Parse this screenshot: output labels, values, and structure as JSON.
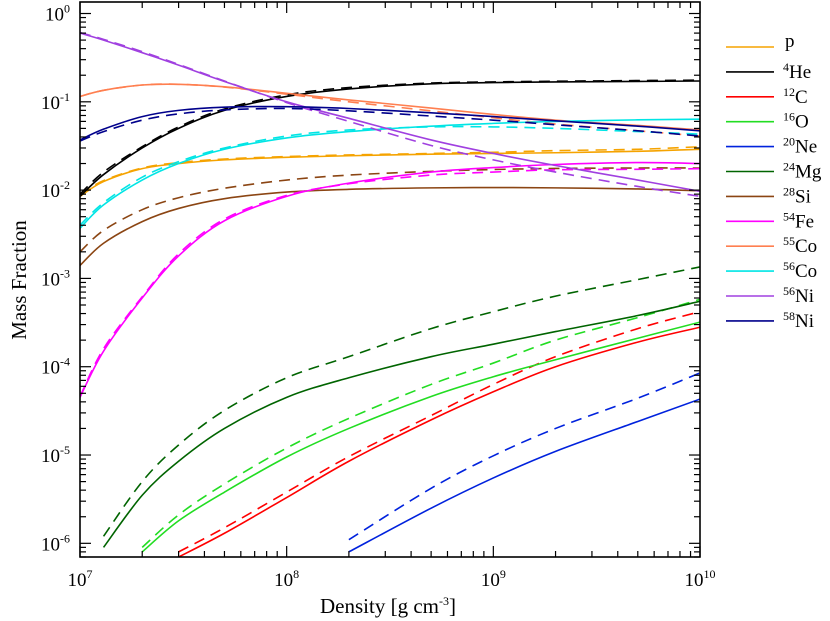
{
  "chart_data": {
    "type": "line",
    "x_scale": "log",
    "y_scale": "log",
    "xlabel": "Density [g cm⁻³]",
    "xlabel_parts": {
      "main": "Density [g cm",
      "sup": "-3",
      "end": "]"
    },
    "ylabel": "Mass Fraction",
    "xlim": [
      10000000,
      10000000000
    ],
    "ylim": [
      7e-07,
      1.35
    ],
    "grid": false,
    "legend_placement": "right, outside plot",
    "line_styles": {
      "solid": "model A (unlabeled)",
      "dashed": "model B (unlabeled)"
    },
    "x_ticks": [
      {
        "value": 10000000,
        "base": "10",
        "exp": "7"
      },
      {
        "value": 100000000,
        "base": "10",
        "exp": "8"
      },
      {
        "value": 1000000000,
        "base": "10",
        "exp": "9"
      },
      {
        "value": 10000000000,
        "base": "10",
        "exp": "10"
      }
    ],
    "y_ticks": [
      {
        "value": 1e-06,
        "base": "10",
        "exp": "-6"
      },
      {
        "value": 1e-05,
        "base": "10",
        "exp": "-5"
      },
      {
        "value": 0.0001,
        "base": "10",
        "exp": "-4"
      },
      {
        "value": 0.001,
        "base": "10",
        "exp": "-3"
      },
      {
        "value": 0.01,
        "base": "10",
        "exp": "-2"
      },
      {
        "value": 0.1,
        "base": "10",
        "exp": "-1"
      },
      {
        "value": 1,
        "base": "10",
        "exp": "0"
      }
    ],
    "x": [
      10000000,
      13000000,
      20000000,
      30000000,
      50000000,
      100000000,
      200000000,
      500000000,
      1000000000,
      2000000000,
      5000000000,
      10000000000
    ],
    "series": [
      {
        "name": "p",
        "sup": "",
        "sym": "p",
        "color": "#f5a300",
        "solid": [
          0.0085,
          0.0125,
          0.0175,
          0.02,
          0.022,
          0.0235,
          0.0245,
          0.0255,
          0.026,
          0.0265,
          0.0275,
          0.029
        ],
        "dashed": [
          0.009,
          0.0128,
          0.0178,
          0.0205,
          0.0225,
          0.024,
          0.025,
          0.026,
          0.0268,
          0.028,
          0.029,
          0.031
        ]
      },
      {
        "name": "4He",
        "sup": "4",
        "sym": "He",
        "color": "#000000",
        "solid": [
          0.0085,
          0.015,
          0.03,
          0.05,
          0.08,
          0.115,
          0.14,
          0.16,
          0.165,
          0.168,
          0.17,
          0.172
        ],
        "dashed": [
          0.009,
          0.016,
          0.031,
          0.052,
          0.083,
          0.12,
          0.145,
          0.163,
          0.168,
          0.171,
          0.174,
          0.176
        ]
      },
      {
        "name": "12C",
        "sup": "12",
        "sym": "C",
        "color": "#ff0000",
        "solid": [
          null,
          null,
          null,
          7e-07,
          1.3e-06,
          3.3e-06,
          8.5e-06,
          2.5e-05,
          5.2e-05,
          0.0001,
          0.00019,
          0.00028
        ],
        "dashed": [
          null,
          null,
          null,
          8e-07,
          1.5e-06,
          3.8e-06,
          9.6e-06,
          2.8e-05,
          6.3e-05,
          0.00013,
          0.00027,
          0.00042
        ]
      },
      {
        "name": "16O",
        "sup": "16",
        "sym": "O",
        "color": "#22dd22",
        "solid": [
          null,
          null,
          8e-07,
          1.8e-06,
          3.8e-06,
          9.5e-06,
          2e-05,
          4.6e-05,
          7.7e-05,
          0.00012,
          0.00021,
          0.00032
        ],
        "dashed": [
          null,
          null,
          9e-07,
          2.1e-06,
          4.7e-06,
          1.2e-05,
          2.6e-05,
          6.3e-05,
          0.00011,
          0.0002,
          0.00036,
          0.00058
        ]
      },
      {
        "name": "20Ne",
        "sup": "20",
        "sym": "Ne",
        "color": "#0022dd",
        "solid": [
          null,
          null,
          null,
          null,
          null,
          null,
          8e-07,
          2.5e-06,
          5.5e-06,
          1.1e-05,
          2.4e-05,
          4.3e-05
        ],
        "dashed": [
          null,
          null,
          null,
          null,
          null,
          null,
          1.1e-06,
          4.2e-06,
          9.8e-06,
          2e-05,
          4.4e-05,
          8.5e-05
        ]
      },
      {
        "name": "24Mg",
        "sup": "24",
        "sym": "Mg",
        "color": "#006400",
        "solid": [
          null,
          9e-07,
          3.5e-06,
          8.5e-06,
          2e-05,
          4.5e-05,
          7.5e-05,
          0.00013,
          0.00018,
          0.00025,
          0.00038,
          0.00055
        ],
        "dashed": [
          null,
          1.2e-06,
          5e-06,
          1.3e-05,
          3.2e-05,
          7.5e-05,
          0.00013,
          0.00027,
          0.00042,
          0.00063,
          0.00097,
          0.00135
        ]
      },
      {
        "name": "28Si",
        "sup": "28",
        "sym": "Si",
        "color": "#8b4513",
        "solid": [
          0.0014,
          0.0025,
          0.0044,
          0.0062,
          0.008,
          0.0095,
          0.0102,
          0.0106,
          0.0107,
          0.0106,
          0.0103,
          0.0098
        ],
        "dashed": [
          0.002,
          0.0035,
          0.006,
          0.0082,
          0.0105,
          0.013,
          0.0148,
          0.0163,
          0.0171,
          0.0176,
          0.0178,
          0.0178
        ]
      },
      {
        "name": "54Fe",
        "sup": "54",
        "sym": "Fe",
        "color": "#ff00ff",
        "solid": [
          4.5e-05,
          0.00015,
          0.0006,
          0.0018,
          0.0045,
          0.0085,
          0.012,
          0.016,
          0.018,
          0.0195,
          0.0205,
          0.02
        ],
        "dashed": [
          4.6e-05,
          0.00016,
          0.00062,
          0.0019,
          0.0047,
          0.0087,
          0.0118,
          0.0148,
          0.016,
          0.017,
          0.0172,
          0.0175
        ]
      },
      {
        "name": "55Co",
        "sup": "55",
        "sym": "Co",
        "color": "#ff7f50",
        "solid": [
          0.115,
          0.135,
          0.155,
          0.158,
          0.148,
          0.125,
          0.105,
          0.085,
          0.072,
          0.062,
          0.054,
          0.048
        ],
        "dashed": [
          0.115,
          0.135,
          0.155,
          0.158,
          0.147,
          0.122,
          0.1,
          0.079,
          0.066,
          0.056,
          0.047,
          0.041
        ]
      },
      {
        "name": "56Co",
        "sup": "56",
        "sym": "Co",
        "color": "#00e5e5",
        "solid": [
          0.0037,
          0.0068,
          0.013,
          0.02,
          0.029,
          0.039,
          0.046,
          0.053,
          0.057,
          0.06,
          0.0625,
          0.0635
        ],
        "dashed": [
          0.004,
          0.0072,
          0.014,
          0.021,
          0.03,
          0.041,
          0.048,
          0.052,
          0.052,
          0.05,
          0.046,
          0.043
        ]
      },
      {
        "name": "56Ni",
        "sup": "56",
        "sym": "Ni",
        "color": "#a040e0",
        "solid": [
          0.6,
          0.5,
          0.36,
          0.26,
          0.17,
          0.1,
          0.065,
          0.037,
          0.026,
          0.019,
          0.013,
          0.0097
        ],
        "dashed": [
          0.61,
          0.51,
          0.37,
          0.265,
          0.172,
          0.098,
          0.06,
          0.032,
          0.022,
          0.016,
          0.011,
          0.0085
        ]
      },
      {
        "name": "58Ni",
        "sup": "58",
        "sym": "Ni",
        "color": "#00008b",
        "solid": [
          0.037,
          0.049,
          0.068,
          0.08,
          0.087,
          0.088,
          0.084,
          0.075,
          0.068,
          0.061,
          0.053,
          0.047
        ],
        "dashed": [
          0.036,
          0.046,
          0.062,
          0.073,
          0.081,
          0.084,
          0.079,
          0.069,
          0.062,
          0.055,
          0.047,
          0.041
        ]
      }
    ]
  }
}
